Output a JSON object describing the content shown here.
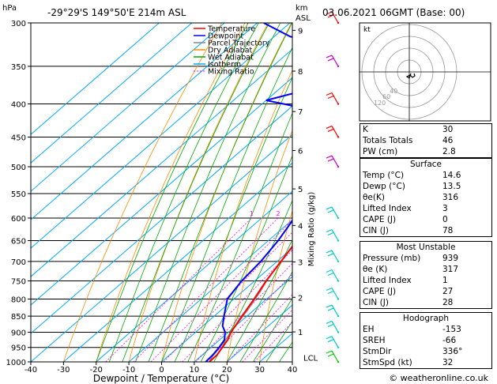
{
  "header": {
    "title": "-29°29'S 149°50'E 214m ASL",
    "date": "03.06.2021 06GMT (Base: 00)",
    "hpa_unit": "hPa",
    "km_unit": "km",
    "asl_unit": "ASL"
  },
  "legend": [
    {
      "label": "Temperature",
      "color": "#ff0000"
    },
    {
      "label": "Dewpoint",
      "color": "#0000ff"
    },
    {
      "label": "Parcel Trajectory",
      "color": "#888888"
    },
    {
      "label": "Dry Adiabat",
      "color": "#ff8c00"
    },
    {
      "label": "Wet Adiabat",
      "color": "#00aa00"
    },
    {
      "label": "Isotherm",
      "color": "#00aaff"
    },
    {
      "label": "Mixing Ratio",
      "color": "#ff00ff"
    }
  ],
  "chart_data": {
    "type": "line",
    "xlabel": "Dewpoint / Temperature (°C)",
    "ylabel": "hPa",
    "right_axis_label": "Mixing Ratio (g/kg)",
    "xlim": [
      -40,
      40
    ],
    "ylim": [
      1000,
      300
    ],
    "x_ticks": [
      "-40",
      "-30",
      "-20",
      "-10",
      "0",
      "10",
      "20",
      "30",
      "40"
    ],
    "pressure_levels": [
      300,
      350,
      400,
      450,
      500,
      550,
      600,
      650,
      700,
      750,
      800,
      850,
      900,
      950,
      1000
    ],
    "km_ticks": [
      {
        "label": "9",
        "p": 308
      },
      {
        "label": "8",
        "p": 356
      },
      {
        "label": "7",
        "p": 411
      },
      {
        "label": "6",
        "p": 472
      },
      {
        "label": "5",
        "p": 541
      },
      {
        "label": "4",
        "p": 616
      },
      {
        "label": "3",
        "p": 701
      },
      {
        "label": "2",
        "p": 795
      },
      {
        "label": "1",
        "p": 899
      },
      {
        "label": "LCL",
        "p": 985
      }
    ],
    "mixing_ratio_labels": [
      "1",
      "2",
      "3",
      "4",
      "6",
      "8",
      "10",
      "15",
      "20",
      "25"
    ],
    "series": [
      {
        "name": "Temperature",
        "color": "#ff0000",
        "points": [
          [
            14.6,
            1000
          ],
          [
            14.5,
            975
          ],
          [
            13.5,
            950
          ],
          [
            12.5,
            925
          ],
          [
            10.8,
            900
          ],
          [
            8.5,
            850
          ],
          [
            6.2,
            800
          ],
          [
            3.5,
            750
          ],
          [
            1.2,
            700
          ],
          [
            -1.3,
            650
          ],
          [
            -4,
            600
          ],
          [
            -7.5,
            550
          ],
          [
            -11,
            500
          ],
          [
            -14.5,
            460
          ],
          [
            -17.5,
            430
          ],
          [
            -20.5,
            400
          ],
          [
            -23,
            380
          ],
          [
            -26,
            360
          ],
          [
            -29.5,
            340
          ],
          [
            -33,
            320
          ],
          [
            -36.5,
            300
          ]
        ]
      },
      {
        "name": "Dewpoint",
        "color": "#0000ff",
        "points": [
          [
            13.5,
            1000
          ],
          [
            13.2,
            975
          ],
          [
            12.5,
            950
          ],
          [
            11.5,
            925
          ],
          [
            9,
            900
          ],
          [
            6,
            880
          ],
          [
            3,
            850
          ],
          [
            -2,
            800
          ],
          [
            -4,
            750
          ],
          [
            -5,
            700
          ],
          [
            -7,
            650
          ],
          [
            -10,
            600
          ],
          [
            -13,
            550
          ],
          [
            -19,
            520
          ],
          [
            -19,
            500
          ],
          [
            -20,
            480
          ],
          [
            -19,
            470
          ],
          [
            -22,
            465
          ],
          [
            -25,
            455
          ],
          [
            -29,
            440
          ],
          [
            -35,
            420
          ],
          [
            -47,
            405
          ],
          [
            -60,
            395
          ],
          [
            -46,
            372
          ],
          [
            -40,
            365
          ],
          [
            -50,
            350
          ],
          [
            -56,
            325
          ],
          [
            -75,
            315
          ],
          [
            -88,
            300
          ]
        ]
      }
    ],
    "parcel": [
      [
        14.6,
        1000
      ],
      [
        13.8,
        985
      ],
      [
        12,
        930
      ],
      [
        10,
        880
      ],
      [
        8,
        830
      ],
      [
        5.5,
        780
      ],
      [
        3,
        740
      ]
    ],
    "wind_barbs": [
      {
        "p": 300,
        "color": "#ff0000"
      },
      {
        "p": 350,
        "color": "#cc00cc"
      },
      {
        "p": 400,
        "color": "#ff0000"
      },
      {
        "p": 450,
        "color": "#ff0000"
      },
      {
        "p": 500,
        "color": "#cc00cc"
      },
      {
        "p": 600,
        "color": "#00cccc"
      },
      {
        "p": 650,
        "color": "#00cccc"
      },
      {
        "p": 700,
        "color": "#00cccc"
      },
      {
        "p": 750,
        "color": "#00cccc"
      },
      {
        "p": 800,
        "color": "#00cccc"
      },
      {
        "p": 850,
        "color": "#00cccc"
      },
      {
        "p": 900,
        "color": "#00cccc"
      },
      {
        "p": 950,
        "color": "#00cccc"
      },
      {
        "p": 1000,
        "color": "#00cc00"
      }
    ]
  },
  "hodograph": {
    "unit_label": "kt",
    "ring_labels": [
      "40",
      "60",
      "120"
    ]
  },
  "indices": {
    "top": [
      {
        "label": "K",
        "value": "30"
      },
      {
        "label": "Totals Totals",
        "value": "46"
      },
      {
        "label": "PW (cm)",
        "value": "2.8"
      }
    ],
    "surface": {
      "title": "Surface",
      "rows": [
        {
          "label": "Temp (°C)",
          "value": "14.6"
        },
        {
          "label": "Dewp (°C)",
          "value": "13.5"
        },
        {
          "label": "θe(K)",
          "value": "316"
        },
        {
          "label": "Lifted Index",
          "value": "3"
        },
        {
          "label": "CAPE (J)",
          "value": "0"
        },
        {
          "label": "CIN (J)",
          "value": "78"
        }
      ]
    },
    "most_unstable": {
      "title": "Most Unstable",
      "rows": [
        {
          "label": "Pressure (mb)",
          "value": "939"
        },
        {
          "label": "θe (K)",
          "value": "317"
        },
        {
          "label": "Lifted Index",
          "value": "1"
        },
        {
          "label": "CAPE (J)",
          "value": "27"
        },
        {
          "label": "CIN (J)",
          "value": "28"
        }
      ]
    },
    "hodograph_box": {
      "title": "Hodograph",
      "rows": [
        {
          "label": "EH",
          "value": "-153"
        },
        {
          "label": "SREH",
          "value": "-66"
        },
        {
          "label": "StmDir",
          "value": "336°"
        },
        {
          "label": "StmSpd (kt)",
          "value": "32"
        }
      ]
    }
  },
  "footer": {
    "credit": "© weatheronline.co.uk"
  }
}
